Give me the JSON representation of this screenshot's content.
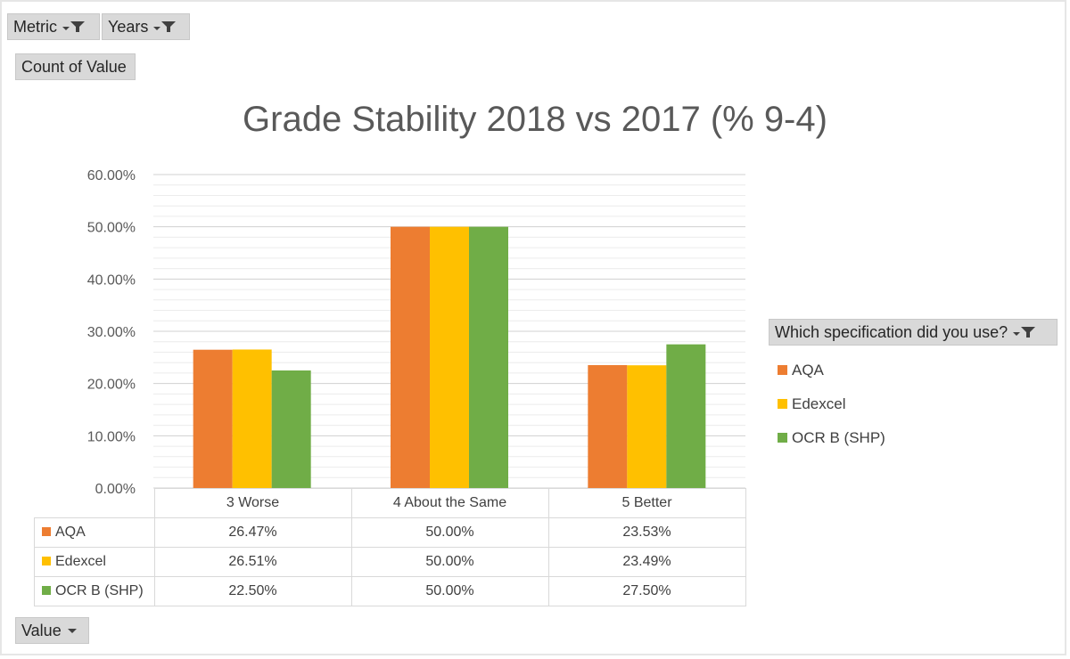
{
  "filters": {
    "metric_label": "Metric",
    "years_label": "Years",
    "values_field": "Count of Value",
    "axis_field": "Value",
    "legend_field": "Which specification did you use?"
  },
  "colors": {
    "AQA": "#ed7d31",
    "Edexcel": "#ffc000",
    "OCR B (SHP)": "#70ad47",
    "grid": "#d9d9d9"
  },
  "chart_data": {
    "type": "bar",
    "title": "Grade Stability 2018 vs 2017 (% 9-4)",
    "categories": [
      "3 Worse",
      "4 About the Same",
      "5 Better"
    ],
    "series": [
      {
        "name": "AQA",
        "values": [
          26.47,
          50.0,
          23.53
        ],
        "labels": [
          "26.47%",
          "50.00%",
          "23.53%"
        ]
      },
      {
        "name": "Edexcel",
        "values": [
          26.51,
          50.0,
          23.49
        ],
        "labels": [
          "26.51%",
          "50.00%",
          "23.49%"
        ]
      },
      {
        "name": "OCR B (SHP)",
        "values": [
          22.5,
          50.0,
          27.5
        ],
        "labels": [
          "22.50%",
          "50.00%",
          "27.50%"
        ]
      }
    ],
    "ylim": [
      0,
      60
    ],
    "yticks": [
      "0.00%",
      "10.00%",
      "20.00%",
      "30.00%",
      "40.00%",
      "50.00%",
      "60.00%"
    ],
    "grid": true,
    "legend_position": "right",
    "data_table": true
  }
}
